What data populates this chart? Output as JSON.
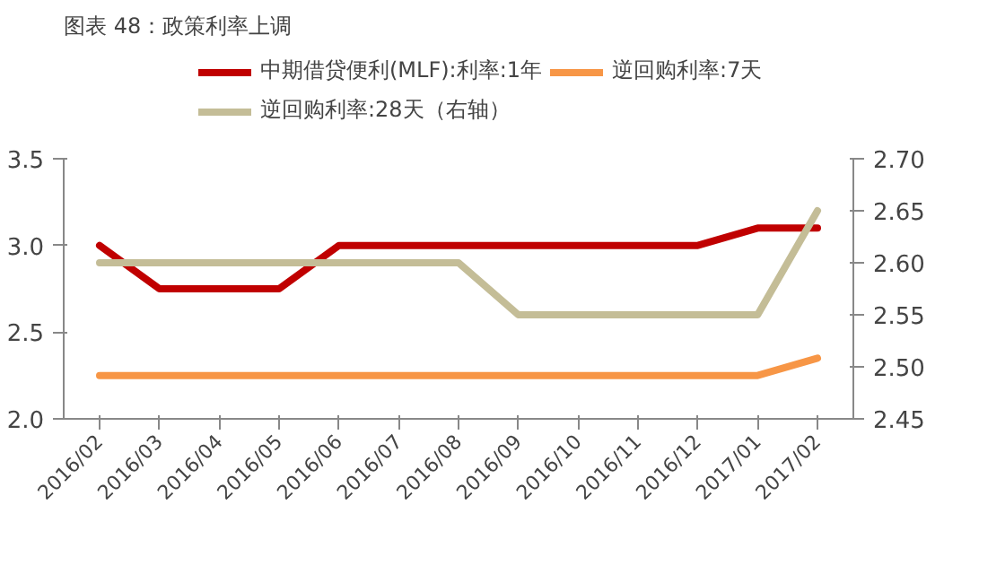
{
  "chart_data": {
    "type": "line",
    "title": "图表 48：政策利率上调",
    "categories": [
      "2016/02",
      "2016/03",
      "2016/04",
      "2016/05",
      "2016/06",
      "2016/07",
      "2016/08",
      "2016/09",
      "2016/10",
      "2016/11",
      "2016/12",
      "2017/01",
      "2017/02"
    ],
    "series": [
      {
        "name": "中期借贷便利(MLF):利率:1年",
        "color": "#c00000",
        "values": [
          3.0,
          2.75,
          2.75,
          2.75,
          3.0,
          3.0,
          3.0,
          3.0,
          3.0,
          3.0,
          3.0,
          3.1,
          3.1
        ]
      },
      {
        "name": "逆回购利率:7天",
        "color": "#f79646",
        "values": [
          2.25,
          2.25,
          2.25,
          2.25,
          2.25,
          2.25,
          2.25,
          2.25,
          2.25,
          2.25,
          2.25,
          2.25,
          2.35
        ]
      },
      {
        "name": "逆回购利率:28天（右轴）",
        "color": "#c4bd97",
        "axis": "y2",
        "values": [
          2.6,
          2.6,
          2.6,
          2.6,
          2.6,
          2.6,
          2.6,
          2.55,
          2.55,
          2.55,
          2.55,
          2.55,
          2.65
        ]
      }
    ],
    "ylim": [
      2.0,
      3.5
    ],
    "yticks": [
      {
        "value": 2.0,
        "label": "2.0"
      },
      {
        "value": 2.5,
        "label": "2.5"
      },
      {
        "value": 3.0,
        "label": "3.0"
      },
      {
        "value": 3.5,
        "label": "3.5"
      }
    ],
    "y2lim": [
      2.45,
      2.7
    ],
    "y2ticks": [
      {
        "value": 2.45,
        "label": "2.45"
      },
      {
        "value": 2.5,
        "label": "2.50"
      },
      {
        "value": 2.55,
        "label": "2.55"
      },
      {
        "value": 2.6,
        "label": "2.60"
      },
      {
        "value": 2.65,
        "label": "2.65"
      },
      {
        "value": 2.7,
        "label": "2.70"
      }
    ],
    "grid": false,
    "legend": "top",
    "marker": "none",
    "line_style": "solid"
  }
}
